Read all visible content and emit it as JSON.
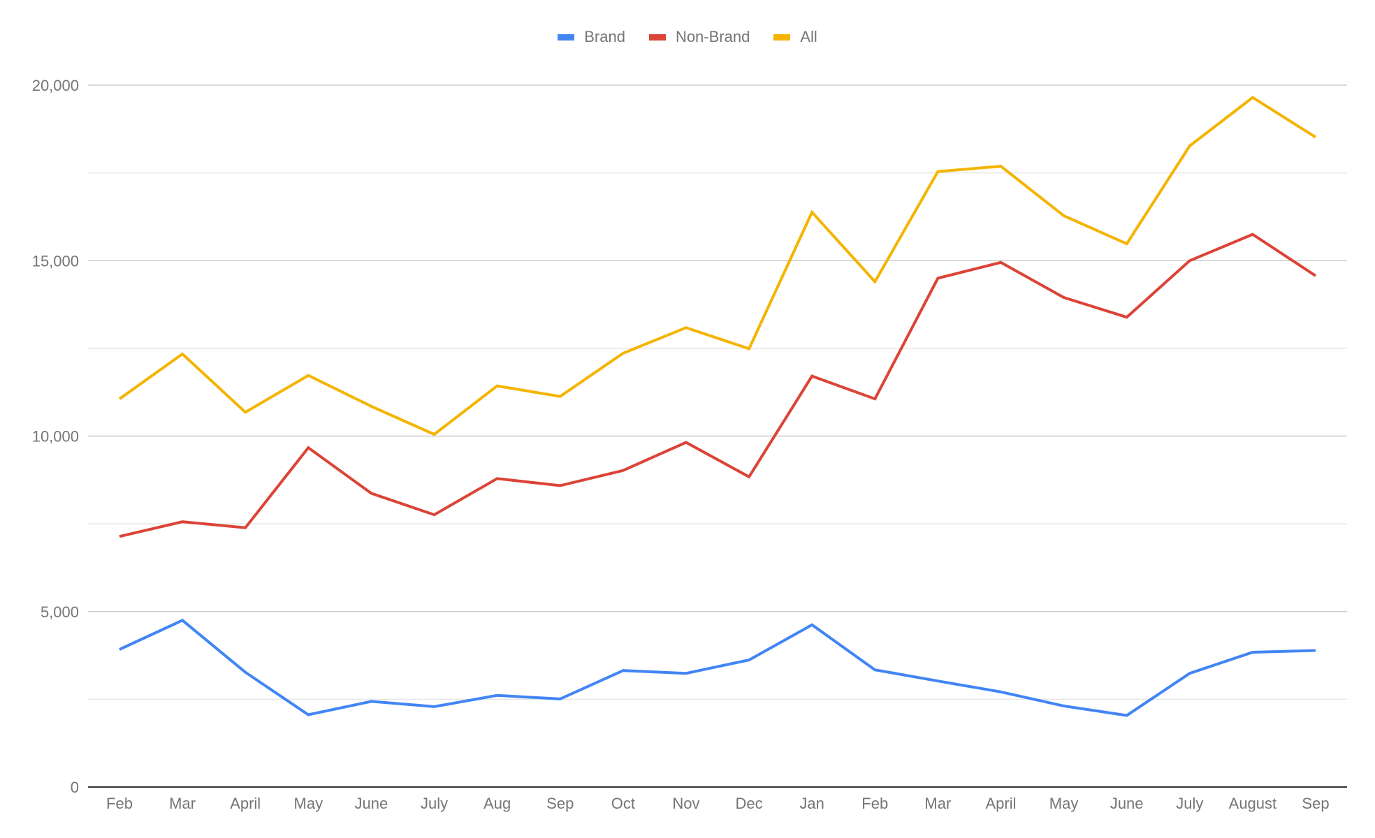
{
  "legend": {
    "items": [
      {
        "label": "Brand",
        "color": "#4285f4"
      },
      {
        "label": "Non-Brand",
        "color": "#db4437"
      },
      {
        "label": "All",
        "color": "#f4b400"
      }
    ]
  },
  "axes": {
    "y_ticks": [
      "0",
      "5,000",
      "10,000",
      "15,000",
      "20,000"
    ],
    "x_ticks": [
      "Feb",
      "Mar",
      "April",
      "May",
      "June",
      "July",
      "Aug",
      "Sep",
      "Oct",
      "Nov",
      "Dec",
      "Jan",
      "Feb",
      "Mar",
      "April",
      "May",
      "June",
      "July",
      "August",
      "Sep"
    ]
  },
  "chart_data": {
    "type": "line",
    "title": "",
    "xlabel": "",
    "ylabel": "",
    "ylim": [
      0,
      20000
    ],
    "grid": true,
    "minor_gridlines": true,
    "legend_position": "top",
    "categories": [
      "Feb",
      "Mar",
      "April",
      "May",
      "June",
      "July",
      "Aug",
      "Sep",
      "Oct",
      "Nov",
      "Dec",
      "Jan",
      "Feb",
      "Mar",
      "April",
      "May",
      "June",
      "July",
      "August",
      "Sep"
    ],
    "series": [
      {
        "name": "Brand",
        "color": "#4285f4",
        "values": [
          3920,
          4750,
          3270,
          2060,
          2440,
          2290,
          2610,
          2510,
          3320,
          3240,
          3620,
          4620,
          3340,
          3020,
          2710,
          2310,
          2040,
          3240,
          3840,
          3890
        ]
      },
      {
        "name": "Non-Brand",
        "color": "#db4437",
        "values": [
          7140,
          7560,
          7390,
          9670,
          8370,
          7760,
          8790,
          8590,
          9020,
          9820,
          8840,
          11710,
          11060,
          14500,
          14950,
          13950,
          13390,
          15000,
          15750,
          14570
        ]
      },
      {
        "name": "All",
        "color": "#f4b400",
        "values": [
          11060,
          12340,
          10680,
          11730,
          10850,
          10050,
          11430,
          11130,
          12360,
          13090,
          12490,
          16380,
          14400,
          17540,
          17690,
          16280,
          15480,
          18270,
          19650,
          18520
        ]
      }
    ]
  }
}
